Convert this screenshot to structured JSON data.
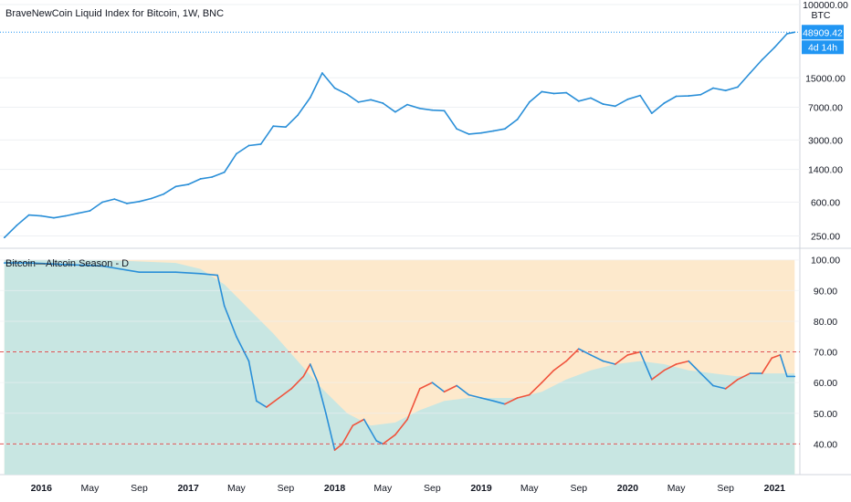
{
  "chart_data": [
    {
      "type": "line",
      "title": "BraveNewCoin Liquid Index for Bitcoin, 1W, BNC",
      "currency_label": "BTC",
      "y_scale": "log",
      "ylim": [
        200,
        100000
      ],
      "y_ticks": [
        "250.00",
        "600.00",
        "1400.00",
        "3000.00",
        "7000.00",
        "15000.00",
        "100000.00"
      ],
      "last_price": "48909.42",
      "countdown": "4d 14h",
      "colors": {
        "line": "#2a8fd8",
        "badge": "#2196f3"
      },
      "series": [
        {
          "x": [
            "2015-10-01",
            "2015-11-01",
            "2015-12-01",
            "2016-01-01",
            "2016-02-01",
            "2016-03-01",
            "2016-04-01",
            "2016-05-01",
            "2016-06-01",
            "2016-07-01",
            "2016-08-01",
            "2016-09-01",
            "2016-10-01",
            "2016-11-01",
            "2016-12-01",
            "2017-01-01",
            "2017-02-01",
            "2017-03-01",
            "2017-04-01",
            "2017-05-01",
            "2017-06-01",
            "2017-07-01",
            "2017-08-01",
            "2017-09-01",
            "2017-10-01",
            "2017-11-01",
            "2017-12-01",
            "2018-01-01",
            "2018-02-01",
            "2018-03-01",
            "2018-04-01",
            "2018-05-01",
            "2018-06-01",
            "2018-07-01",
            "2018-08-01",
            "2018-09-01",
            "2018-10-01",
            "2018-11-01",
            "2018-12-01",
            "2019-01-01",
            "2019-02-01",
            "2019-03-01",
            "2019-04-01",
            "2019-05-01",
            "2019-06-01",
            "2019-07-01",
            "2019-08-01",
            "2019-09-01",
            "2019-10-01",
            "2019-11-01",
            "2019-12-01",
            "2020-01-01",
            "2020-02-01",
            "2020-03-01",
            "2020-04-01",
            "2020-05-01",
            "2020-06-01",
            "2020-07-01",
            "2020-08-01",
            "2020-09-01",
            "2020-10-01",
            "2020-11-01",
            "2020-12-01",
            "2021-01-01",
            "2021-02-01",
            "2021-02-20"
          ],
          "values": [
            240,
            330,
            430,
            420,
            400,
            420,
            450,
            480,
            600,
            650,
            580,
            610,
            660,
            740,
            900,
            950,
            1100,
            1150,
            1300,
            2100,
            2600,
            2700,
            4300,
            4200,
            5700,
            9000,
            17000,
            11500,
            9800,
            8000,
            8500,
            7800,
            6200,
            7500,
            6800,
            6500,
            6400,
            4000,
            3500,
            3600,
            3800,
            4000,
            5100,
            8000,
            10500,
            10000,
            10200,
            8200,
            8900,
            7600,
            7200,
            8600,
            9500,
            6000,
            7800,
            9300,
            9400,
            9700,
            11500,
            10800,
            11800,
            17000,
            24000,
            33000,
            47000,
            48909
          ]
        }
      ]
    },
    {
      "type": "line",
      "title": "Bitcoin—Altcoin Season - D",
      "ylim": [
        30,
        102
      ],
      "y_ticks": [
        "40.00",
        "50.00",
        "60.00",
        "70.00",
        "80.00",
        "90.00",
        "100.00"
      ],
      "thresholds": [
        40,
        70
      ],
      "colors": {
        "line": "#2a8fd8",
        "line_alt": "#f0533c",
        "area_teal": "#c8e6e2",
        "area_orange": "#fde9cc",
        "threshold": "#e05555"
      },
      "x_labels": [
        "2016",
        "May",
        "Sep",
        "2017",
        "May",
        "Sep",
        "2018",
        "May",
        "Sep",
        "2019",
        "May",
        "Sep",
        "2020",
        "May",
        "Sep",
        "2021"
      ],
      "bold_labels": [
        "2016",
        "2017",
        "2018",
        "2019",
        "2020",
        "2021"
      ],
      "series": [
        {
          "name": "",
          "x": [
            "2015-10-01",
            "2015-12-01",
            "2016-03-01",
            "2016-06-01",
            "2016-09-01",
            "2016-12-01",
            "2017-02-01",
            "2017-03-15",
            "2017-04-01",
            "2017-05-01",
            "2017-06-01",
            "2017-06-20",
            "2017-07-15",
            "2017-08-15",
            "2017-09-15",
            "2017-10-15",
            "2017-11-01",
            "2017-11-20",
            "2017-12-10",
            "2018-01-01",
            "2018-01-20",
            "2018-02-15",
            "2018-03-15",
            "2018-04-15",
            "2018-05-01",
            "2018-06-01",
            "2018-07-01",
            "2018-08-01",
            "2018-09-01",
            "2018-10-01",
            "2018-11-01",
            "2018-12-01",
            "2019-01-01",
            "2019-02-01",
            "2019-03-01",
            "2019-04-01",
            "2019-05-01",
            "2019-06-01",
            "2019-07-01",
            "2019-08-01",
            "2019-09-01",
            "2019-10-01",
            "2019-11-01",
            "2019-12-01",
            "2020-01-01",
            "2020-02-01",
            "2020-03-01",
            "2020-04-01",
            "2020-05-01",
            "2020-06-01",
            "2020-07-01",
            "2020-08-01",
            "2020-09-01",
            "2020-10-01",
            "2020-11-01",
            "2020-12-01",
            "2020-12-25",
            "2021-01-15",
            "2021-02-01",
            "2021-02-20"
          ],
          "values": [
            99,
            99,
            98.5,
            98,
            96,
            96,
            95.5,
            95,
            85,
            75,
            67,
            54,
            52,
            55,
            58,
            62,
            66,
            60,
            50,
            38,
            40,
            46,
            48,
            41,
            40,
            43,
            48,
            58,
            60,
            57,
            59,
            56,
            55,
            54,
            53,
            55,
            56,
            60,
            64,
            67,
            71,
            69,
            67,
            66,
            69,
            70,
            61,
            64,
            66,
            67,
            63,
            59,
            58,
            61,
            63,
            63,
            68,
            69,
            62,
            62
          ]
        },
        {
          "name": "",
          "x": [
            "2015-10-01",
            "2016-06-01",
            "2016-12-01",
            "2017-02-01",
            "2017-04-01",
            "2017-06-01",
            "2017-08-01",
            "2017-10-01",
            "2017-12-01",
            "2018-02-01",
            "2018-04-01",
            "2018-06-01",
            "2018-08-01",
            "2018-10-01",
            "2018-12-01",
            "2019-02-01",
            "2019-04-01",
            "2019-06-01",
            "2019-08-01",
            "2019-10-01",
            "2019-12-01",
            "2020-02-01",
            "2020-04-01",
            "2020-06-01",
            "2020-08-01",
            "2020-10-01",
            "2020-12-01",
            "2021-02-20"
          ],
          "values": [
            100,
            100,
            99,
            97,
            92,
            84,
            76,
            67,
            58,
            50,
            46,
            47,
            51,
            54,
            55,
            55,
            55,
            57,
            61,
            64,
            66,
            67,
            66,
            64,
            63,
            62,
            63,
            63
          ]
        }
      ]
    }
  ]
}
